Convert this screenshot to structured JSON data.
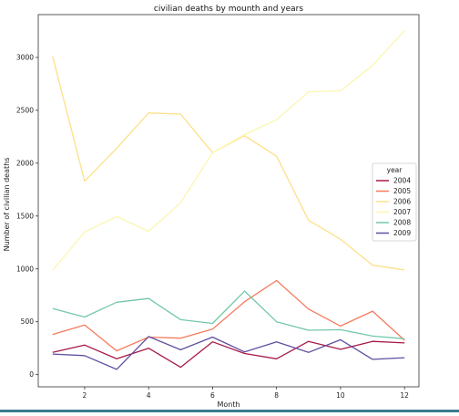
{
  "chart_data": {
    "type": "line",
    "title": "civilian deaths by mounth and years",
    "xlabel": "Month",
    "ylabel": "Number of civilian deaths",
    "xlim": [
      0.55,
      12.45
    ],
    "ylim": [
      -115,
      3405
    ],
    "xticks": [
      2,
      4,
      6,
      8,
      10,
      12
    ],
    "yticks": [
      0,
      500,
      1000,
      1500,
      2000,
      2500,
      3000
    ],
    "grid": false,
    "legend": {
      "title": "year",
      "placement": "right"
    },
    "x": [
      1,
      2,
      3,
      4,
      5,
      6,
      7,
      8,
      9,
      10,
      11,
      12
    ],
    "series": [
      {
        "name": "2004",
        "color": "#a8194a",
        "values": [
          210,
          280,
          150,
          250,
          70,
          310,
          200,
          150,
          315,
          240,
          315,
          300
        ]
      },
      {
        "name": "2005",
        "color": "#f47b5e",
        "values": [
          380,
          470,
          225,
          355,
          345,
          430,
          690,
          890,
          620,
          460,
          600,
          325
        ]
      },
      {
        "name": "2006",
        "color": "#fde08a",
        "values": [
          3010,
          1830,
          2140,
          2475,
          2465,
          2100,
          2260,
          2065,
          1460,
          1280,
          1035,
          990
        ]
      },
      {
        "name": "2007",
        "color": "#fbf6b0",
        "values": [
          985,
          1350,
          1495,
          1355,
          1625,
          2100,
          2270,
          2410,
          2675,
          2685,
          2925,
          3255
        ]
      },
      {
        "name": "2008",
        "color": "#74c8a6",
        "values": [
          625,
          545,
          685,
          720,
          520,
          485,
          790,
          500,
          420,
          425,
          365,
          340
        ]
      },
      {
        "name": "2009",
        "color": "#5e4f9f",
        "values": [
          195,
          180,
          50,
          360,
          235,
          355,
          215,
          310,
          210,
          330,
          145,
          160
        ]
      }
    ]
  }
}
